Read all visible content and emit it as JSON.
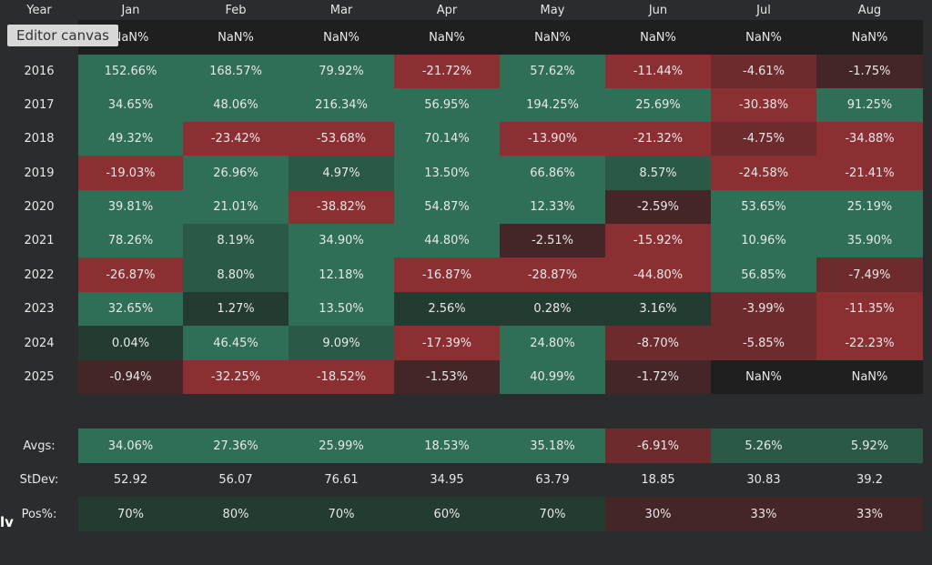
{
  "editor_label": "Editor canvas",
  "corner_logo": "lv",
  "colors": {
    "pos_light": "#2f6e57",
    "pos_mid": "#2a5a47",
    "pos_dark": "#243b31",
    "neg_light": "#8c2f33",
    "neg_mid": "#6e2b2e",
    "neg_dark": "#452628",
    "neutral": "#1f1f20"
  },
  "header": {
    "year_label": "Year",
    "months": [
      "Jan",
      "Feb",
      "Mar",
      "Apr",
      "May",
      "Jun",
      "Jul",
      "Aug"
    ]
  },
  "nan_row": [
    "NaN%",
    "NaN%",
    "NaN%",
    "NaN%",
    "NaN%",
    "NaN%",
    "NaN%",
    "NaN%"
  ],
  "years": [
    {
      "label": "2016",
      "values": [
        "152.66%",
        "168.57%",
        "79.92%",
        "-21.72%",
        "57.62%",
        "-11.44%",
        "-4.61%",
        "-1.75%"
      ]
    },
    {
      "label": "2017",
      "values": [
        "34.65%",
        "48.06%",
        "216.34%",
        "56.95%",
        "194.25%",
        "25.69%",
        "-30.38%",
        "91.25%"
      ]
    },
    {
      "label": "2018",
      "values": [
        "49.32%",
        "-23.42%",
        "-53.68%",
        "70.14%",
        "-13.90%",
        "-21.32%",
        "-4.75%",
        "-34.88%"
      ]
    },
    {
      "label": "2019",
      "values": [
        "-19.03%",
        "26.96%",
        "4.97%",
        "13.50%",
        "66.86%",
        "8.57%",
        "-24.58%",
        "-21.41%"
      ]
    },
    {
      "label": "2020",
      "values": [
        "39.81%",
        "21.01%",
        "-38.82%",
        "54.87%",
        "12.33%",
        "-2.59%",
        "53.65%",
        "25.19%"
      ]
    },
    {
      "label": "2021",
      "values": [
        "78.26%",
        "8.19%",
        "34.90%",
        "44.80%",
        "-2.51%",
        "-15.92%",
        "10.96%",
        "35.90%"
      ]
    },
    {
      "label": "2022",
      "values": [
        "-26.87%",
        "8.80%",
        "12.18%",
        "-16.87%",
        "-28.87%",
        "-44.80%",
        "56.85%",
        "-7.49%"
      ]
    },
    {
      "label": "2023",
      "values": [
        "32.65%",
        "1.27%",
        "13.50%",
        "2.56%",
        "0.28%",
        "3.16%",
        "-3.99%",
        "-11.35%"
      ]
    },
    {
      "label": "2024",
      "values": [
        "0.04%",
        "46.45%",
        "9.09%",
        "-17.39%",
        "24.80%",
        "-8.70%",
        "-5.85%",
        "-22.23%"
      ]
    },
    {
      "label": "2025",
      "values": [
        "-0.94%",
        "-32.25%",
        "-18.52%",
        "-1.53%",
        "40.99%",
        "-1.72%",
        "NaN%",
        "NaN%"
      ]
    }
  ],
  "stats": [
    {
      "label": "Avgs:",
      "values": [
        "34.06%",
        "27.36%",
        "25.99%",
        "18.53%",
        "35.18%",
        "-6.91%",
        "5.26%",
        "5.92%"
      ]
    },
    {
      "label": "StDev:",
      "values": [
        "52.92",
        "56.07",
        "76.61",
        "34.95",
        "63.79",
        "18.85",
        "30.83",
        "39.2"
      ]
    },
    {
      "label": "Pos%:",
      "values": [
        "70%",
        "80%",
        "70%",
        "60%",
        "70%",
        "30%",
        "33%",
        "33%"
      ]
    }
  ]
}
